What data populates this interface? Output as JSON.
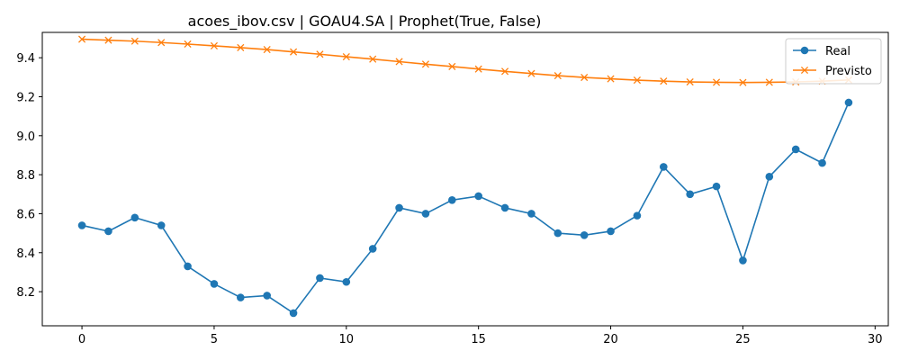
{
  "chart_data": {
    "type": "line",
    "title": "acoes_ibov.csv | GOAU4.SA | Prophet(True, False)",
    "xlabel": "",
    "ylabel": "",
    "xlim": [
      -1.5,
      30.5
    ],
    "ylim": [
      8.025,
      9.53
    ],
    "xticks": [
      0,
      5,
      10,
      15,
      20,
      25,
      30
    ],
    "yticks": [
      8.2,
      8.4,
      8.6,
      8.8,
      9.0,
      9.2,
      9.4
    ],
    "xtick_labels": [
      "0",
      "5",
      "10",
      "15",
      "20",
      "25",
      "30"
    ],
    "ytick_labels": [
      "8.2",
      "8.4",
      "8.6",
      "8.8",
      "9.0",
      "9.2",
      "9.4"
    ],
    "grid": false,
    "legend_position": "top-right",
    "x": [
      0,
      1,
      2,
      3,
      4,
      5,
      6,
      7,
      8,
      9,
      10,
      11,
      12,
      13,
      14,
      15,
      16,
      17,
      18,
      19,
      20,
      21,
      22,
      23,
      24,
      25,
      26,
      27,
      28,
      29
    ],
    "series": [
      {
        "name": "Real",
        "color": "#1f77b4",
        "marker": "circle",
        "values": [
          8.54,
          8.51,
          8.58,
          8.54,
          8.33,
          8.24,
          8.17,
          8.18,
          8.09,
          8.27,
          8.25,
          8.42,
          8.63,
          8.6,
          8.67,
          8.69,
          8.63,
          8.6,
          8.5,
          8.49,
          8.51,
          8.59,
          8.84,
          8.7,
          8.74,
          8.36,
          8.79,
          8.93,
          8.86,
          9.17
        ]
      },
      {
        "name": "Previsto",
        "color": "#ff7f0e",
        "marker": "x",
        "values": [
          9.495,
          9.49,
          9.485,
          9.478,
          9.47,
          9.461,
          9.452,
          9.442,
          9.43,
          9.418,
          9.405,
          9.393,
          9.38,
          9.367,
          9.355,
          9.342,
          9.33,
          9.319,
          9.308,
          9.299,
          9.292,
          9.285,
          9.28,
          9.276,
          9.274,
          9.273,
          9.274,
          9.276,
          9.28,
          9.286
        ]
      }
    ]
  }
}
